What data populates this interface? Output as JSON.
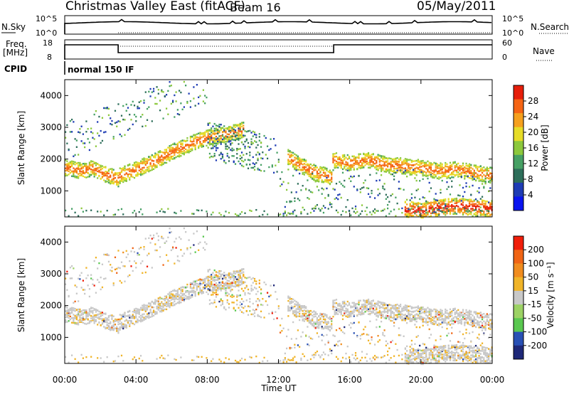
{
  "header": {
    "title": "Christmas Valley East (fitACF)",
    "beam": "Beam 16",
    "date": "05/May/2011"
  },
  "top_panels": {
    "nsky_label": "N.Sky",
    "nsearch_label": "N.Search",
    "nsky_ticks": [
      "10^5",
      "10^0"
    ],
    "nsearch_ticks": [
      "10^5",
      "10^0"
    ],
    "freq_label_1": "Freq.",
    "freq_label_2": "[MHz]",
    "freq_ticks": [
      "18",
      "8"
    ],
    "nave_label": "Nave",
    "nave_ticks": [
      "60",
      "0"
    ],
    "cpid_label": "CPID",
    "cpid_value": "normal 150 IF"
  },
  "colors": {
    "power_scale": [
      "#0a14f0",
      "#1e3cb4",
      "#2d6e5a",
      "#46a064",
      "#8cc83c",
      "#e6dc28",
      "#f5a01e",
      "#f56414",
      "#e61e0a"
    ],
    "velocity_scale": [
      "#1e2878",
      "#2850b4",
      "#5ac850",
      "#9cd264",
      "#c8c8c8",
      "#f0b428",
      "#f08c1e",
      "#f06414",
      "#f01e0a"
    ],
    "background_scatter": "#c8c8c8"
  },
  "chart_data": [
    {
      "type": "heatmap",
      "panel": "power",
      "ylabel": "Slant Range [km]",
      "xlabel": "Time UT",
      "xticks": [
        "00:00",
        "04:00",
        "08:00",
        "12:00",
        "16:00",
        "20:00",
        "00:00"
      ],
      "yticks": [
        "1000",
        "2000",
        "3000",
        "4000"
      ],
      "ylim": [
        180,
        4500
      ],
      "xlim": [
        0,
        24
      ],
      "colorbar_label": "Power [dB]",
      "colorbar_ticks": [
        "28",
        "24",
        "20",
        "16",
        "12",
        "8",
        "4"
      ],
      "features": [
        {
          "t": [
            0.0,
            0.5,
            1.0,
            1.5,
            2.0,
            2.5,
            3.0
          ],
          "r": [
            1750,
            1700,
            1650,
            1750,
            1600,
            1500,
            1400
          ]
        },
        {
          "t": [
            3.0,
            4.0,
            5.0,
            6.0,
            7.0,
            8.0,
            9.0,
            10.0
          ],
          "r": [
            1500,
            1700,
            1950,
            2250,
            2500,
            2700,
            2800,
            2950
          ]
        },
        {
          "t": [
            12.5,
            13.0,
            14.0,
            15.0
          ],
          "r": [
            2100,
            1900,
            1600,
            1450
          ]
        },
        {
          "t": [
            15.0,
            16.0,
            17.0,
            18.0,
            19.0,
            20.0,
            21.0,
            22.0,
            23.0,
            24.0
          ],
          "r": [
            2000,
            1900,
            2000,
            1850,
            1800,
            1750,
            1650,
            1700,
            1600,
            1500
          ]
        },
        {
          "t": [
            19.0,
            20.0,
            21.0,
            22.0,
            23.0,
            24.0
          ],
          "r": [
            450,
            400,
            500,
            550,
            500,
            450
          ]
        }
      ]
    },
    {
      "type": "heatmap",
      "panel": "velocity",
      "ylabel": "Slant Range [km]",
      "xlabel": "Time UT",
      "xticks": [
        "00:00",
        "04:00",
        "08:00",
        "12:00",
        "16:00",
        "20:00",
        "00:00"
      ],
      "yticks": [
        "1000",
        "2000",
        "3000",
        "4000"
      ],
      "ylim": [
        180,
        4500
      ],
      "xlim": [
        0,
        24
      ],
      "colorbar_label": "Velocity [m s⁻¹]",
      "colorbar_ticks": [
        "200",
        "100",
        "50",
        "15",
        "-15",
        "-50",
        "-100",
        "-200"
      ]
    }
  ]
}
